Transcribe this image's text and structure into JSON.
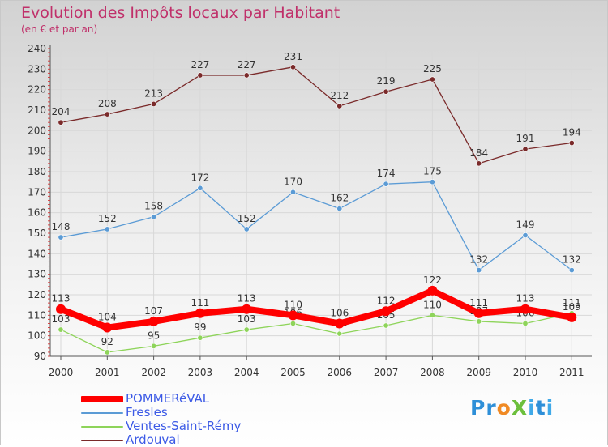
{
  "title": "Evolution des Impôts locaux par Habitant",
  "subtitle": "(en € et par an)",
  "logo_text": "ProXiti",
  "chart_data": {
    "type": "line",
    "title": "Evolution des Impôts locaux par Habitant",
    "subtitle": "(en € et par an)",
    "xlabel": "",
    "ylabel": "",
    "ylim": [
      90,
      240
    ],
    "yticks": [
      90,
      100,
      110,
      120,
      130,
      140,
      150,
      160,
      170,
      180,
      190,
      200,
      210,
      220,
      230,
      240
    ],
    "grid": true,
    "legend_position": "bottom-left",
    "categories": [
      "2000",
      "2001",
      "2002",
      "2003",
      "2004",
      "2005",
      "2006",
      "2007",
      "2008",
      "2009",
      "2010",
      "2011"
    ],
    "series": [
      {
        "name": "Ardouval",
        "color": "#7a2a2a",
        "values": [
          204,
          208,
          213,
          227,
          227,
          231,
          212,
          219,
          225,
          184,
          191,
          194
        ]
      },
      {
        "name": "Fresles",
        "color": "#5b9bd5",
        "values": [
          148,
          152,
          158,
          172,
          152,
          170,
          162,
          174,
          175,
          132,
          149,
          132
        ]
      },
      {
        "name": "Ventes-Saint-Rémy",
        "color": "#8ed45a",
        "values": [
          103,
          92,
          95,
          99,
          103,
          106,
          101,
          105,
          110,
          107,
          106,
          111
        ]
      },
      {
        "name": "POMMERéVAL",
        "color": "#ff0000",
        "values": [
          113,
          104,
          107,
          111,
          113,
          110,
          106,
          112,
          122,
          111,
          113,
          109
        ]
      }
    ],
    "legend_order": [
      "POMMERéVAL",
      "Fresles",
      "Ventes-Saint-Rémy",
      "Ardouval"
    ]
  }
}
